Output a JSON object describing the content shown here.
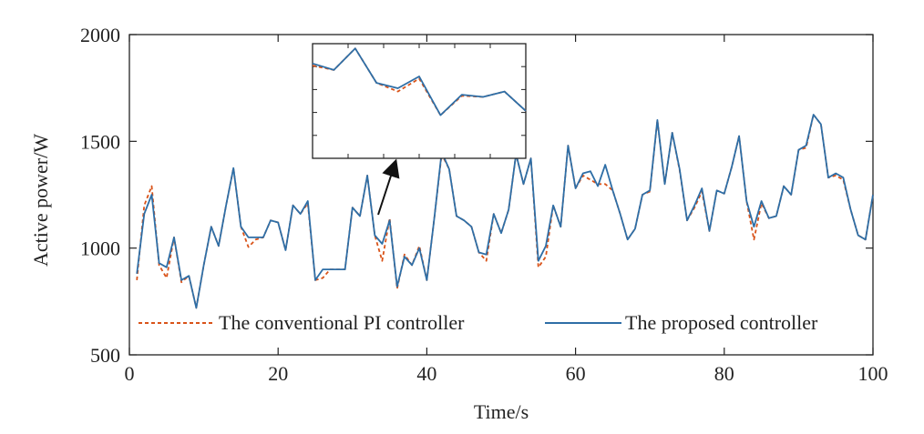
{
  "chart_data": [
    {
      "type": "line",
      "xlabel": "Time/s",
      "ylabel": "Active power/W",
      "xlim": [
        0,
        100
      ],
      "ylim": [
        500,
        2000
      ],
      "x_ticks": [
        "0",
        "20",
        "40",
        "60",
        "80",
        "100"
      ],
      "y_ticks": [
        "500",
        "1000",
        "1500",
        "2000"
      ],
      "grid": false,
      "legend_position": "bottom",
      "x": [
        1,
        2,
        3,
        4,
        5,
        6,
        7,
        8,
        9,
        10,
        11,
        12,
        13,
        14,
        15,
        16,
        17,
        18,
        19,
        20,
        21,
        22,
        23,
        24,
        25,
        26,
        27,
        28,
        29,
        30,
        31,
        32,
        33,
        34,
        35,
        36,
        37,
        38,
        39,
        40,
        41,
        42,
        43,
        44,
        45,
        46,
        47,
        48,
        49,
        50,
        51,
        52,
        53,
        54,
        55,
        56,
        57,
        58,
        59,
        60,
        61,
        62,
        63,
        64,
        65,
        66,
        67,
        68,
        69,
        70,
        71,
        72,
        73,
        74,
        75,
        76,
        77,
        78,
        79,
        80,
        81,
        82,
        83,
        84,
        85,
        86,
        87,
        88,
        89,
        90,
        91,
        92,
        93,
        94,
        95,
        96,
        97,
        98,
        99,
        100
      ],
      "series": [
        {
          "name": "The conventional PI controller",
          "color": "#d95319",
          "style": "dashed",
          "values": [
            850,
            1200,
            1290,
            920,
            860,
            1050,
            840,
            870,
            720,
            920,
            1100,
            1010,
            1200,
            1375,
            1100,
            1005,
            1040,
            1050,
            1130,
            1120,
            990,
            1200,
            1160,
            1210,
            850,
            860,
            900,
            900,
            900,
            1190,
            1150,
            1340,
            1060,
            940,
            1140,
            810,
            970,
            920,
            1010,
            850,
            1140,
            1440,
            1370,
            1150,
            1130,
            1100,
            980,
            940,
            1160,
            1070,
            1180,
            1440,
            1300,
            1420,
            910,
            960,
            1200,
            1100,
            1480,
            1280,
            1340,
            1320,
            1300,
            1300,
            1270,
            1160,
            1040,
            1090,
            1250,
            1265,
            1600,
            1300,
            1540,
            1365,
            1130,
            1190,
            1265,
            1080,
            1270,
            1255,
            1380,
            1525,
            1220,
            1040,
            1210,
            1140,
            1150,
            1290,
            1250,
            1460,
            1470,
            1625,
            1580,
            1330,
            1340,
            1320,
            1180,
            1060,
            1040,
            1250
          ]
        },
        {
          "name": "The proposed controller",
          "color": "#2e6ea6",
          "style": "solid",
          "values": [
            880,
            1160,
            1250,
            930,
            910,
            1050,
            850,
            870,
            720,
            920,
            1100,
            1010,
            1200,
            1375,
            1100,
            1050,
            1050,
            1050,
            1130,
            1120,
            990,
            1200,
            1160,
            1220,
            850,
            900,
            900,
            900,
            900,
            1190,
            1150,
            1340,
            1060,
            1020,
            1130,
            820,
            960,
            920,
            1000,
            850,
            1140,
            1450,
            1370,
            1150,
            1130,
            1100,
            980,
            970,
            1160,
            1070,
            1180,
            1440,
            1300,
            1420,
            940,
            1010,
            1200,
            1100,
            1480,
            1280,
            1350,
            1360,
            1290,
            1390,
            1270,
            1160,
            1040,
            1090,
            1250,
            1270,
            1600,
            1300,
            1540,
            1370,
            1130,
            1200,
            1280,
            1080,
            1270,
            1255,
            1380,
            1525,
            1220,
            1100,
            1220,
            1140,
            1150,
            1290,
            1250,
            1460,
            1480,
            1625,
            1580,
            1330,
            1350,
            1330,
            1180,
            1060,
            1040,
            1250
          ]
        }
      ]
    },
    {
      "type": "line",
      "role": "inset-zoom",
      "title": "",
      "series": [
        {
          "name": "The conventional PI controller",
          "color": "#d95319",
          "style": "dashed",
          "values": [
            0.86,
            0.82,
            1.02,
            0.7,
            0.62,
            0.74,
            0.4,
            0.58,
            0.57,
            0.62,
            0.44
          ]
        },
        {
          "name": "The proposed controller",
          "color": "#2e6ea6",
          "style": "solid",
          "values": [
            0.88,
            0.82,
            1.02,
            0.7,
            0.65,
            0.76,
            0.4,
            0.59,
            0.57,
            0.62,
            0.44
          ]
        }
      ]
    }
  ]
}
